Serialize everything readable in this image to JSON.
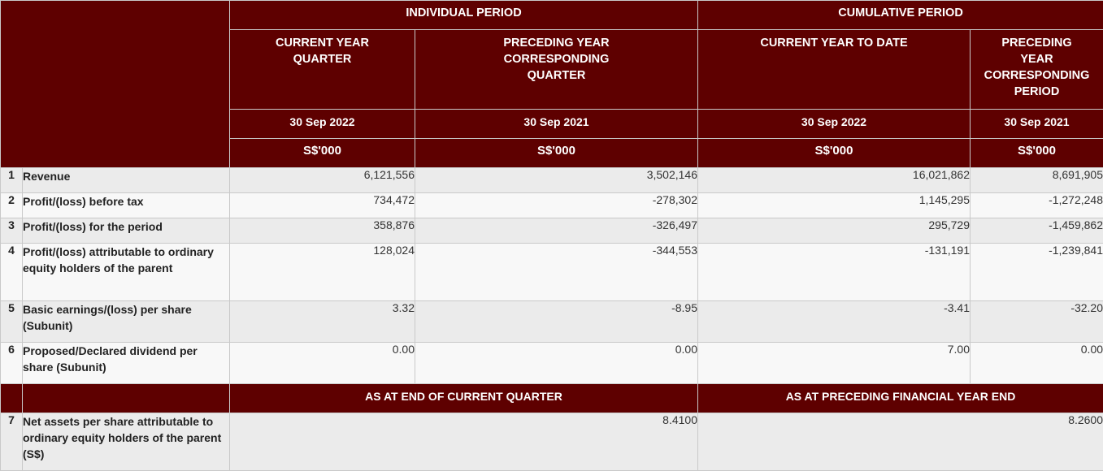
{
  "header": {
    "individual_period": "INDIVIDUAL PERIOD",
    "cumulative_period": "CUMULATIVE PERIOD",
    "columns": [
      {
        "title_lines": [
          "CURRENT YEAR",
          "QUARTER"
        ],
        "date": "30 Sep 2022",
        "unit": "S$'000"
      },
      {
        "title_lines": [
          "PRECEDING YEAR",
          "CORRESPONDING",
          "QUARTER"
        ],
        "date": "30 Sep 2021",
        "unit": "S$'000"
      },
      {
        "title_lines": [
          "CURRENT YEAR TO DATE"
        ],
        "date": "30 Sep 2022",
        "unit": "S$'000"
      },
      {
        "title_lines": [
          "PRECEDING",
          "YEAR",
          "CORRESPONDING",
          "PERIOD"
        ],
        "date": "30 Sep 2021",
        "unit": "S$'000"
      }
    ]
  },
  "rows": [
    {
      "index": "1",
      "label": "Revenue",
      "values": [
        "6,121,556",
        "3,502,146",
        "16,021,862",
        "8,691,905"
      ]
    },
    {
      "index": "2",
      "label": "Profit/(loss) before tax",
      "values": [
        "734,472",
        "-278,302",
        "1,145,295",
        "-1,272,248"
      ]
    },
    {
      "index": "3",
      "label": "Profit/(loss) for the period",
      "values": [
        "358,876",
        "-326,497",
        "295,729",
        "-1,459,862"
      ]
    },
    {
      "index": "4",
      "label": "Profit/(loss) attributable to ordinary equity holders of the parent",
      "values": [
        "128,024",
        "-344,553",
        "-131,191",
        "-1,239,841"
      ]
    },
    {
      "index": "5",
      "label": "Basic earnings/(loss) per share (Subunit)",
      "values": [
        "3.32",
        "-8.95",
        "-3.41",
        "-32.20"
      ]
    },
    {
      "index": "6",
      "label": "Proposed/Declared dividend per share (Subunit)",
      "values": [
        "0.00",
        "0.00",
        "7.00",
        "0.00"
      ]
    }
  ],
  "footer_header": {
    "current": "AS AT END OF CURRENT QUARTER",
    "preceding": "AS AT PRECEDING FINANCIAL YEAR END"
  },
  "footer_row": {
    "index": "7",
    "label": "Net assets per share attributable to ordinary equity holders of the parent (S$)",
    "values": [
      "8.4100",
      "8.2600"
    ]
  }
}
